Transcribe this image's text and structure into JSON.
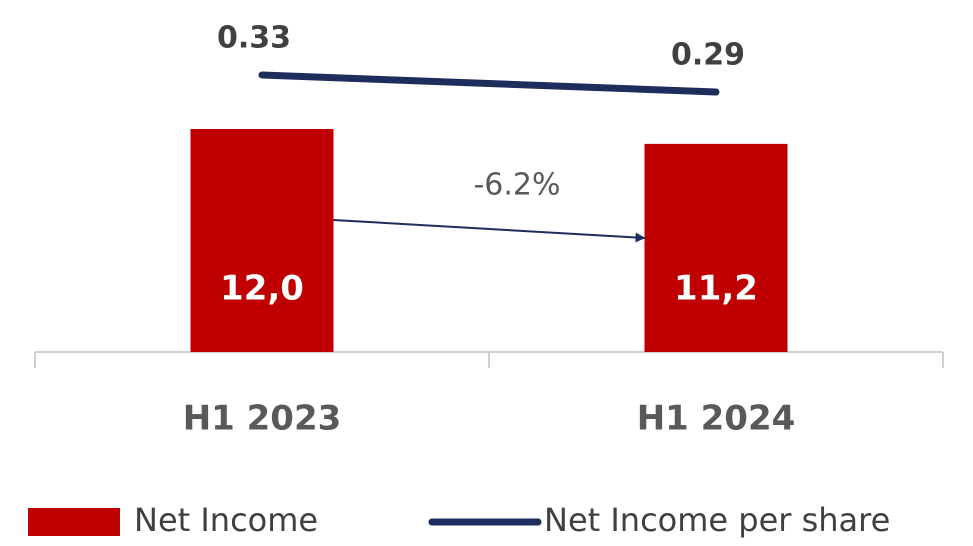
{
  "chart_data": {
    "type": "bar",
    "categories": [
      "H1 2023",
      "H1 2024"
    ],
    "series": [
      {
        "name": "Net Income",
        "type": "bar",
        "color": "#c00000",
        "values": [
          12.0,
          11.2
        ],
        "value_labels": [
          "12,0",
          "11,2"
        ]
      },
      {
        "name": "Net Income per share",
        "type": "line",
        "axis": "y2",
        "color": "#1f2d5c",
        "values": [
          0.33,
          0.29
        ]
      }
    ],
    "annotation": "-6.2%",
    "ylim": [
      0,
      12
    ],
    "y2lim": [
      0.25,
      0.35
    ],
    "legend": "bottom"
  }
}
